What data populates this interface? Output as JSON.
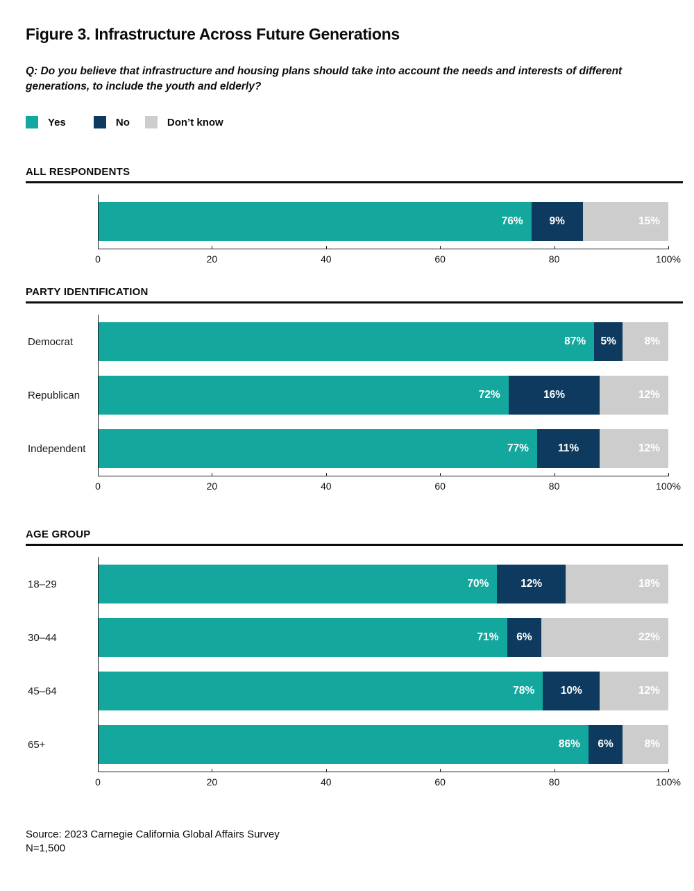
{
  "figure": {
    "title": "Figure 3. Infrastructure Across Future Generations",
    "question_line1": "Q: Do you believe that infrastructure and housing plans should take into account the needs and interests of different",
    "question_line2": "generations, to include the youth and elderly?",
    "source": "Source: 2023 Carnegie California Global Affairs Survey",
    "sample_size": "N=1,500"
  },
  "legend": {
    "position": "top",
    "items": [
      {
        "label": "Yes",
        "color": "#14A79D"
      },
      {
        "label": "No",
        "color": "#0D3A5E"
      },
      {
        "label": "Don’t know",
        "color": "#CDCDCD"
      }
    ]
  },
  "colors": {
    "yes": "#14A79D",
    "no": "#0D3A5E",
    "dont_know": "#CDCDCD",
    "axis": "#1A1A1A",
    "section_rule": "#0D0D0D",
    "bar_label_text": "#FFFFFF"
  },
  "chart_data": [
    {
      "type": "bar",
      "subtype": "horizontal-stacked",
      "title": "ALL RESPONDENTS",
      "categories": [
        ""
      ],
      "series": [
        {
          "name": "Yes",
          "values": [
            76
          ]
        },
        {
          "name": "No",
          "values": [
            9
          ]
        },
        {
          "name": "Don’t know",
          "values": [
            15
          ]
        }
      ],
      "value_suffix": "%",
      "xlim": [
        0,
        100
      ],
      "x_ticks": [
        "0",
        "20",
        "40",
        "60",
        "80",
        "100%"
      ],
      "grid": false,
      "legend_position": "top-shared"
    },
    {
      "type": "bar",
      "subtype": "horizontal-stacked",
      "title": "PARTY IDENTIFICATION",
      "categories": [
        "Democrat",
        "Republican",
        "Independent"
      ],
      "series": [
        {
          "name": "Yes",
          "values": [
            87,
            72,
            77
          ]
        },
        {
          "name": "No",
          "values": [
            5,
            16,
            11
          ]
        },
        {
          "name": "Don’t know",
          "values": [
            8,
            12,
            12
          ]
        }
      ],
      "value_suffix": "%",
      "xlim": [
        0,
        100
      ],
      "x_ticks": [
        "0",
        "20",
        "40",
        "60",
        "80",
        "100%"
      ],
      "grid": false,
      "legend_position": "top-shared"
    },
    {
      "type": "bar",
      "subtype": "horizontal-stacked",
      "title": "AGE GROUP",
      "categories": [
        "18–29",
        "30–44",
        "45–64",
        "65+"
      ],
      "series": [
        {
          "name": "Yes",
          "values": [
            70,
            71,
            78,
            86
          ]
        },
        {
          "name": "No",
          "values": [
            12,
            6,
            10,
            6
          ]
        },
        {
          "name": "Don’t know",
          "values": [
            18,
            22,
            12,
            8
          ]
        }
      ],
      "value_suffix": "%",
      "xlim": [
        0,
        100
      ],
      "x_ticks": [
        "0",
        "20",
        "40",
        "60",
        "80",
        "100%"
      ],
      "grid": false,
      "legend_position": "top-shared"
    }
  ]
}
